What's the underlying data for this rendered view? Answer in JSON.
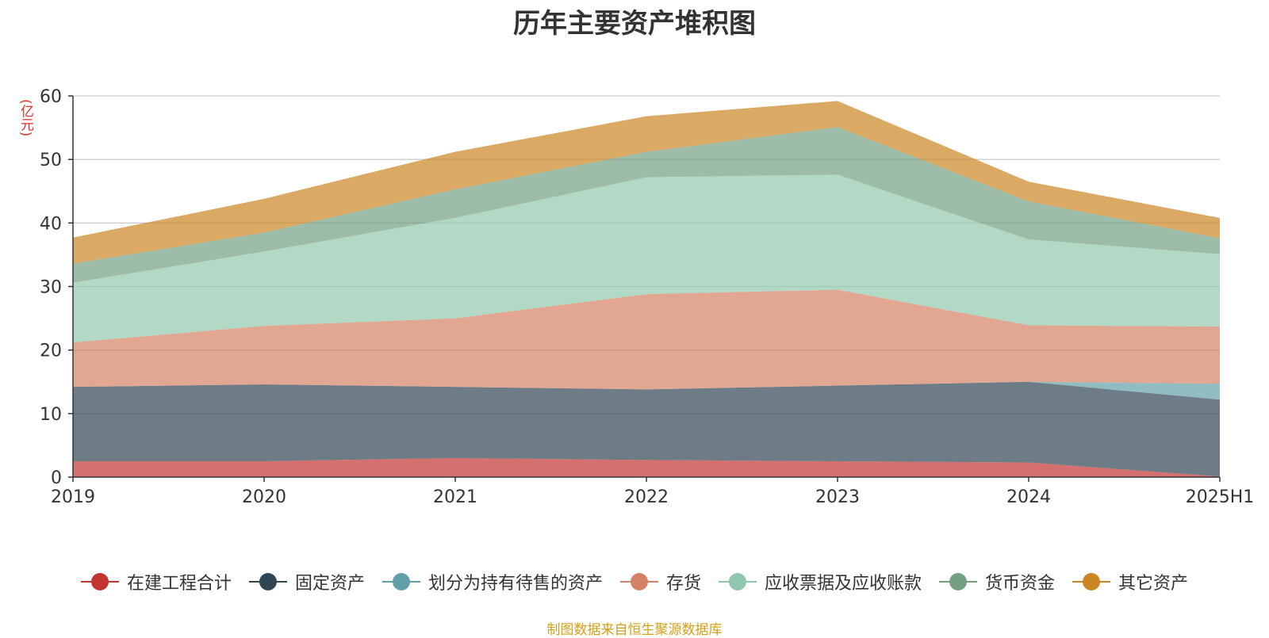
{
  "chart_data": {
    "type": "area",
    "stacked": true,
    "title": "历年主要资产堆积图",
    "ylabel": "(亿元)",
    "ylim": [
      0,
      60
    ],
    "yticks": [
      0,
      10,
      20,
      30,
      40,
      50,
      60
    ],
    "grid": true,
    "legend_position": "bottom",
    "categories": [
      "2019",
      "2020",
      "2021",
      "2022",
      "2023",
      "2024",
      "2025H1"
    ],
    "series": [
      {
        "name": "在建工程合计",
        "color": "#c23531",
        "values": [
          2.5,
          2.5,
          3.0,
          2.7,
          2.5,
          2.3,
          0.1
        ]
      },
      {
        "name": "固定资产",
        "color": "#2f4554",
        "values": [
          11.7,
          12.1,
          11.2,
          11.1,
          11.9,
          12.7,
          12.1
        ]
      },
      {
        "name": "划分为持有待售的资产",
        "color": "#61a0a8",
        "values": [
          0,
          0,
          0,
          0,
          0,
          0,
          2.5
        ]
      },
      {
        "name": "存货",
        "color": "#d48265",
        "values": [
          7.0,
          9.2,
          10.8,
          15.0,
          15.1,
          8.9,
          9.0
        ]
      },
      {
        "name": "应收票据及应收账款",
        "color": "#91c7ae",
        "values": [
          9.4,
          11.7,
          15.8,
          18.4,
          18.1,
          13.5,
          11.4
        ]
      },
      {
        "name": "货币资金",
        "color": "#749f83",
        "values": [
          3.0,
          3.0,
          4.5,
          4.0,
          7.5,
          6.0,
          2.5
        ]
      },
      {
        "name": "其它资产",
        "color": "#ca8622",
        "values": [
          4.1,
          5.3,
          5.9,
          5.6,
          4.1,
          3.1,
          3.2
        ]
      }
    ]
  },
  "source": "制图数据来自恒生聚源数据库"
}
